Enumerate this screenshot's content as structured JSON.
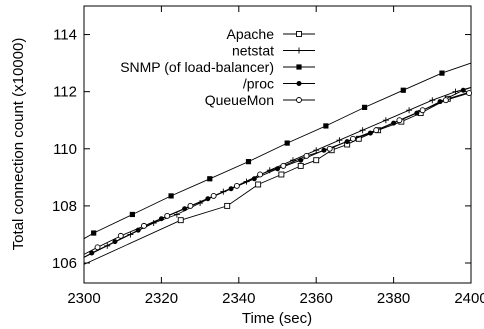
{
  "chart_data": {
    "type": "line",
    "xlabel": "Time (sec)",
    "ylabel": "Total connection count (x10000)",
    "xlim": [
      2300,
      2400
    ],
    "ylim": [
      105.3,
      115
    ],
    "xticks": [
      2300,
      2320,
      2340,
      2360,
      2380,
      2400
    ],
    "yticks": [
      106,
      108,
      110,
      112,
      114
    ],
    "grid": false,
    "legend_position": "top-right",
    "series": [
      {
        "name": "Apache",
        "marker": "open-square",
        "x": [
          2300,
          2325,
          2337,
          2345,
          2351,
          2356,
          2360,
          2364,
          2368,
          2371,
          2376,
          2382,
          2387,
          2394,
          2400
        ],
        "y": [
          105.95,
          107.5,
          108.0,
          108.75,
          109.1,
          109.4,
          109.6,
          109.95,
          110.15,
          110.35,
          110.65,
          110.95,
          111.25,
          111.75,
          112.0
        ]
      },
      {
        "name": "netstat",
        "marker": "plus",
        "x": [
          2300,
          2306,
          2312,
          2318,
          2324,
          2330,
          2336,
          2342,
          2348,
          2354,
          2360,
          2366,
          2372,
          2378,
          2384,
          2390,
          2396,
          2400
        ],
        "y": [
          106.2,
          106.6,
          107.0,
          107.4,
          107.7,
          108.1,
          108.5,
          108.85,
          109.25,
          109.6,
          109.95,
          110.3,
          110.65,
          111.0,
          111.35,
          111.7,
          112.0,
          112.15
        ]
      },
      {
        "name": "SNMP (of load-balancer)",
        "marker": "filled-square",
        "x": [
          2300,
          2302.5,
          2312.5,
          2322.5,
          2332.5,
          2342.5,
          2352.5,
          2362.5,
          2372.5,
          2382.5,
          2392.5,
          2400
        ],
        "y": [
          106.85,
          107.05,
          107.7,
          108.35,
          108.95,
          109.55,
          110.2,
          110.8,
          111.45,
          112.05,
          112.65,
          113.0
        ]
      },
      {
        "name": "/proc",
        "marker": "filled-circle",
        "x": [
          2300,
          2302,
          2308,
          2314,
          2320,
          2326,
          2332,
          2338,
          2344,
          2350,
          2356,
          2362,
          2368,
          2374,
          2380,
          2386,
          2392,
          2398,
          2400
        ],
        "y": [
          106.2,
          106.35,
          106.75,
          107.15,
          107.55,
          107.9,
          108.25,
          108.6,
          108.95,
          109.3,
          109.6,
          109.95,
          110.25,
          110.55,
          110.9,
          111.25,
          111.65,
          112.05,
          112.15
        ]
      },
      {
        "name": "QueueMon",
        "marker": "open-circle",
        "x": [
          2300,
          2303.5,
          2309.5,
          2315.5,
          2321.5,
          2327.5,
          2333.5,
          2339.5,
          2345.5,
          2351.5,
          2357.5,
          2363.5,
          2369.5,
          2375.5,
          2381.5,
          2387.5,
          2393.5,
          2399.5,
          2400
        ],
        "y": [
          106.3,
          106.55,
          106.95,
          107.3,
          107.65,
          108.0,
          108.35,
          108.7,
          109.1,
          109.4,
          109.75,
          110.0,
          110.35,
          110.65,
          111.0,
          111.35,
          111.7,
          111.95,
          112.0
        ]
      }
    ]
  }
}
